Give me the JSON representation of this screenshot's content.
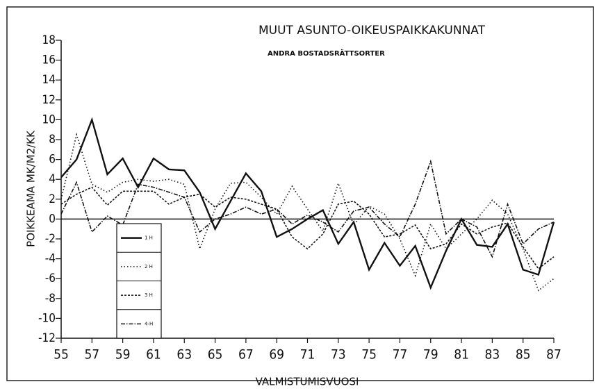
{
  "chart_data": {
    "type": "line",
    "title": "MUUT ASUNTO-OIKEUSPAIKKAKUNNAT",
    "subtitle": "ANDRA BOSTADSRÄTTSORTER",
    "xlabel": "VALMISTUMISVUOSI",
    "ylabel": "POIKKEAMA MK/M2/KK",
    "x": [
      55,
      56,
      57,
      58,
      59,
      60,
      61,
      62,
      63,
      64,
      65,
      66,
      67,
      68,
      69,
      70,
      71,
      72,
      73,
      74,
      75,
      76,
      77,
      78,
      79,
      80,
      81,
      82,
      83,
      84,
      85,
      86,
      87
    ],
    "series": [
      {
        "name": "1 H",
        "color": "#111111",
        "dash": "none",
        "values": [
          4.2,
          6,
          10,
          4.5,
          6.1,
          3.2,
          6.1,
          5,
          4.9,
          2.7,
          -1,
          1.8,
          4.6,
          2.8,
          -1.8,
          -1,
          0,
          0.9,
          -2.5,
          -0.3,
          -5.1,
          -2.4,
          -4.7,
          -2.7,
          -6.9,
          -3.2,
          0,
          -2.6,
          -2.8,
          -0.5,
          -5.1,
          -5.6,
          -0.3
        ]
      },
      {
        "name": "2 H",
        "color": "#111111",
        "dash": "1.5 3",
        "values": [
          2,
          8.5,
          3.5,
          2.7,
          3.7,
          4,
          3.8,
          4,
          3.5,
          -3,
          1,
          3.6,
          3.7,
          2.2,
          0.5,
          3.3,
          1,
          -1.2,
          3.6,
          -0.6,
          1.3,
          0.5,
          -2,
          -5.7,
          -0.5,
          -3,
          -1.5,
          0,
          1.9,
          0.5,
          -3,
          -7.2,
          -6
        ]
      },
      {
        "name": "3 H",
        "color": "#111111",
        "dash": "3 2",
        "values": [
          1.5,
          2.5,
          3.2,
          1.4,
          2.8,
          2.8,
          2.8,
          1.5,
          2.2,
          2.5,
          1.2,
          2.2,
          2,
          1.5,
          1,
          -1.8,
          -3,
          -1.5,
          1.5,
          1.8,
          0.5,
          -1.8,
          -1.5,
          -0.6,
          -3,
          -2.5,
          -0.5,
          -1.5,
          -0.8,
          -0.4,
          -2.8,
          -5,
          -3.8
        ]
      },
      {
        "name": "4-H",
        "color": "#111111",
        "dash": "6 2 1.5 2",
        "values": [
          0.5,
          3.7,
          -1.3,
          0.3,
          -0.6,
          3.5,
          3.2,
          2.7,
          2.2,
          -1.3,
          0,
          0.5,
          1.2,
          0.5,
          1,
          -0.5,
          0.4,
          -0.3,
          -1.3,
          0.8,
          1.2,
          -0.5,
          -1.8,
          1.5,
          5.8,
          -1.5,
          0,
          -0.8,
          -3.8,
          1.5,
          -2.5,
          -1,
          -0.3
        ]
      }
    ],
    "xlim": [
      55,
      87
    ],
    "xticks": [
      55,
      57,
      59,
      61,
      63,
      65,
      67,
      69,
      71,
      73,
      75,
      77,
      79,
      81,
      83,
      85,
      87
    ],
    "ylim": [
      -12,
      18
    ],
    "yticks": [
      -12,
      -10,
      -8,
      -6,
      -4,
      -2,
      0,
      2,
      4,
      6,
      8,
      10,
      12,
      14,
      16,
      18
    ],
    "legend": "lower left"
  }
}
